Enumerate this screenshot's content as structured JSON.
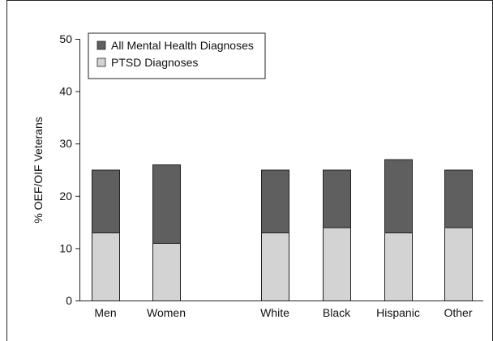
{
  "chart_data": {
    "type": "bar",
    "stacked": true,
    "categories": [
      "Men",
      "Women",
      "White",
      "Black",
      "Hispanic",
      "Other"
    ],
    "series": [
      {
        "name": "PTSD Diagnoses",
        "color": "#d3d3d3",
        "values": [
          13,
          11,
          13,
          14,
          13,
          14
        ]
      },
      {
        "name": "All Mental Health Diagnoses",
        "color": "#5f5f5f",
        "values": [
          12,
          15,
          12,
          11,
          14,
          11
        ]
      }
    ],
    "totals": [
      25,
      26,
      25,
      25,
      27,
      25
    ],
    "ylabel": "% OEF/OIF Veterans",
    "xlabel": "",
    "ylim": [
      0,
      50
    ],
    "yticks": [
      0,
      10,
      20,
      30,
      40,
      50
    ],
    "grid": false,
    "legend": {
      "placement": "top-left",
      "entries": [
        "All Mental Health Diagnoses",
        "PTSD Diagnoses"
      ]
    }
  }
}
